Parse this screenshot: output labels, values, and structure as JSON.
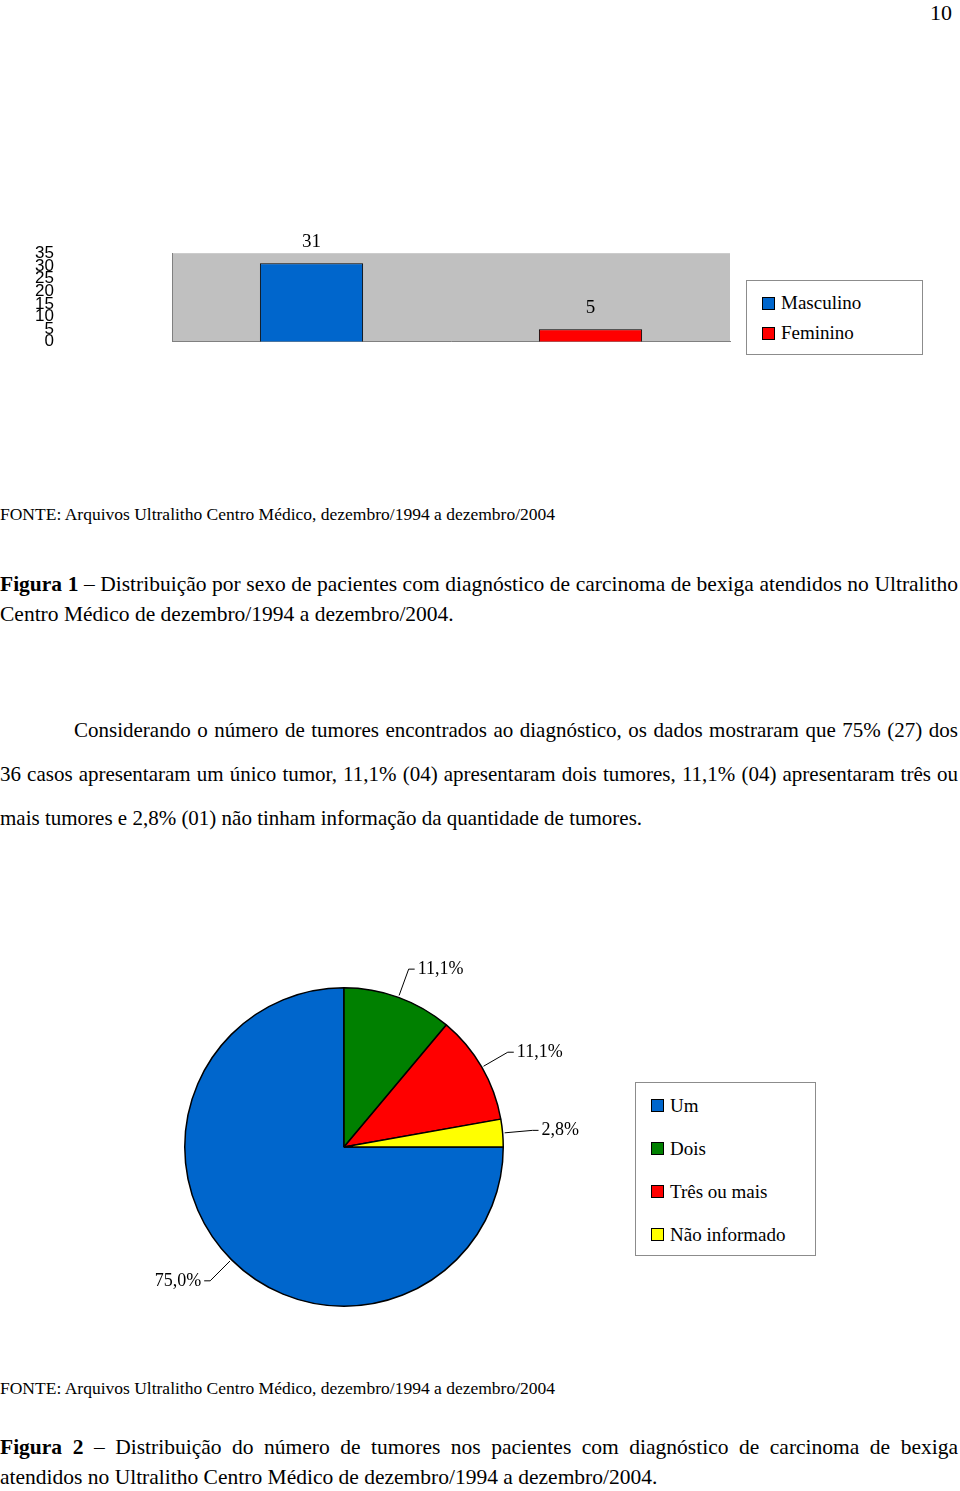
{
  "page": {
    "number": 10,
    "paragraph": "Considerando o número de tumores encontrados ao diagnóstico, os dados mostraram que 75% (27) dos 36 casos apresentaram um único tumor, 11,1% (04) apresentaram dois tumores, 11,1% (04) apresentaram três ou mais tumores e 2,8% (01) não tinham informação da quantidade de tumores."
  },
  "figures": [
    {
      "source": "FONTE: Arquivos Ultralitho Centro Médico, dezembro/1994 a dezembro/2004",
      "caption_label": "Figura 1",
      "caption_text": "– Distribuição por sexo de pacientes com diagnóstico de carcinoma de bexiga atendidos no Ultralitho Centro Médico de dezembro/1994 a dezembro/2004."
    },
    {
      "source": "FONTE: Arquivos Ultralitho Centro Médico, dezembro/1994 a dezembro/2004",
      "caption_label": "Figura 2",
      "caption_text": "– Distribuição do número de tumores nos pacientes com diagnóstico de carcinoma de bexiga atendidos no Ultralitho Centro Médico de dezembro/1994 a dezembro/2004."
    }
  ],
  "chart_data": [
    {
      "type": "bar",
      "categories": [
        null,
        null
      ],
      "series": [
        {
          "name": "Masculino",
          "color": "#0066cc",
          "values": [
            31,
            null
          ]
        },
        {
          "name": "Feminino",
          "color": "#ff0000",
          "values": [
            null,
            5
          ]
        }
      ],
      "ylim": [
        0,
        35
      ],
      "yticks": [
        0,
        5,
        10,
        15,
        20,
        25,
        30,
        35
      ],
      "grid": false,
      "legend": "right",
      "data_labels": true
    },
    {
      "type": "pie",
      "categories": [
        "Um",
        "Dois",
        "Três ou mais",
        "Não informado"
      ],
      "values": [
        75.0,
        11.1,
        11.1,
        2.8
      ],
      "value_labels": [
        "75,0%",
        "11,1%",
        "11,1%",
        "2,8%"
      ],
      "colors": [
        "#0066cc",
        "#008000",
        "#ff0000",
        "#ffff00"
      ],
      "data_labels": true,
      "legend": "right"
    }
  ]
}
